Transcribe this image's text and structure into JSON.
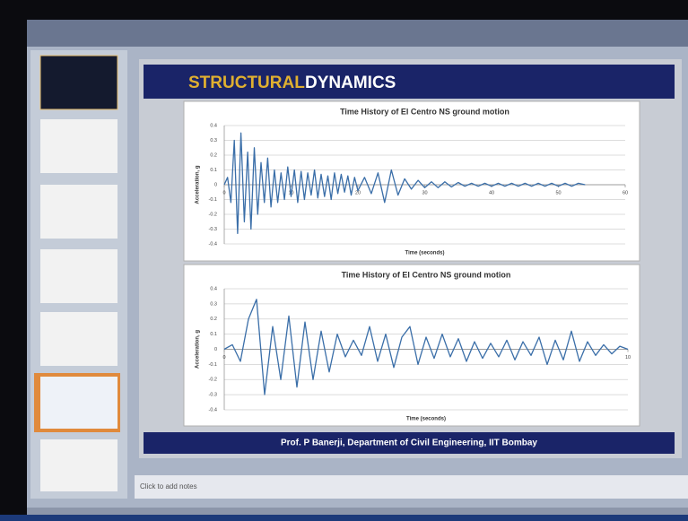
{
  "slide": {
    "title_part1": "STRUCTURAL",
    "title_part2": "DYNAMICS",
    "footer": "Prof. P Banerji, Department of Civil Engineering, IIT Bombay"
  },
  "notes_placeholder": "Click to add notes",
  "chart_data": [
    {
      "type": "line",
      "title": "Time History of El Centro NS ground motion",
      "x_label": "Time (seconds)",
      "y_label": "Acceleration, g",
      "color": "#3a6ea8",
      "grid": true,
      "xlim": [
        0,
        60
      ],
      "ylim": [
        -0.4,
        0.4
      ],
      "xticks": [
        0,
        10,
        20,
        30,
        40,
        50,
        60
      ],
      "yticks": [
        0.4,
        0.3,
        0.2,
        0.1,
        0,
        -0.1,
        -0.2,
        -0.3,
        -0.4
      ],
      "x": [
        0,
        0.5,
        1,
        1.5,
        2,
        2.5,
        3,
        3.5,
        4,
        4.5,
        5,
        5.5,
        6,
        6.5,
        7,
        7.5,
        8,
        8.5,
        9,
        9.5,
        10,
        10.5,
        11,
        11.5,
        12,
        12.5,
        13,
        13.5,
        14,
        14.5,
        15,
        15.5,
        16,
        16.5,
        17,
        17.5,
        18,
        18.5,
        19,
        19.5,
        20,
        21,
        22,
        23,
        24,
        25,
        26,
        27,
        28,
        29,
        30,
        31,
        32,
        33,
        34,
        35,
        36,
        37,
        38,
        39,
        40,
        41,
        42,
        43,
        44,
        45,
        46,
        47,
        48,
        49,
        50,
        51,
        52,
        53,
        54
      ],
      "values": [
        0,
        0.05,
        -0.12,
        0.3,
        -0.33,
        0.35,
        -0.25,
        0.22,
        -0.3,
        0.25,
        -0.2,
        0.15,
        -0.12,
        0.18,
        -0.15,
        0.1,
        -0.12,
        0.08,
        -0.1,
        0.12,
        -0.08,
        0.1,
        -0.12,
        0.09,
        -0.1,
        0.08,
        -0.07,
        0.1,
        -0.09,
        0.07,
        -0.08,
        0.06,
        -0.1,
        0.08,
        -0.06,
        0.07,
        -0.05,
        0.06,
        -0.07,
        0.05,
        -0.04,
        0.05,
        -0.06,
        0.08,
        -0.12,
        0.1,
        -0.07,
        0.04,
        -0.03,
        0.03,
        -0.02,
        0.02,
        -0.02,
        0.02,
        -0.015,
        0.015,
        -0.01,
        0.01,
        -0.01,
        0.01,
        -0.01,
        0.01,
        -0.01,
        0.01,
        -0.01,
        0.01,
        -0.01,
        0.01,
        -0.01,
        0.01,
        -0.01,
        0.01,
        -0.01,
        0.01,
        0
      ]
    },
    {
      "type": "line",
      "title": "Time History of El Centro NS ground motion",
      "x_label": "Time (seconds)",
      "y_label": "Acceleration, g",
      "color": "#3a6ea8",
      "grid": true,
      "xlim": [
        0,
        10
      ],
      "ylim": [
        -0.4,
        0.4
      ],
      "xticks": [
        0,
        10
      ],
      "yticks": [
        0.4,
        0.3,
        0.2,
        0.1,
        0,
        -0.1,
        -0.2,
        -0.3,
        -0.4
      ],
      "x": [
        0,
        0.2,
        0.4,
        0.6,
        0.8,
        1,
        1.2,
        1.4,
        1.6,
        1.8,
        2,
        2.2,
        2.4,
        2.6,
        2.8,
        3,
        3.2,
        3.4,
        3.6,
        3.8,
        4,
        4.2,
        4.4,
        4.6,
        4.8,
        5,
        5.2,
        5.4,
        5.6,
        5.8,
        6,
        6.2,
        6.4,
        6.6,
        6.8,
        7,
        7.2,
        7.4,
        7.6,
        7.8,
        8,
        8.2,
        8.4,
        8.6,
        8.8,
        9,
        9.2,
        9.4,
        9.6,
        9.8,
        10
      ],
      "values": [
        0,
        0.03,
        -0.08,
        0.2,
        0.33,
        -0.3,
        0.15,
        -0.2,
        0.22,
        -0.25,
        0.18,
        -0.2,
        0.12,
        -0.15,
        0.1,
        -0.05,
        0.06,
        -0.04,
        0.15,
        -0.08,
        0.1,
        -0.12,
        0.08,
        0.15,
        -0.1,
        0.08,
        -0.06,
        0.1,
        -0.05,
        0.07,
        -0.08,
        0.05,
        -0.06,
        0.04,
        -0.05,
        0.06,
        -0.07,
        0.05,
        -0.04,
        0.08,
        -0.1,
        0.06,
        -0.07,
        0.12,
        -0.08,
        0.05,
        -0.04,
        0.03,
        -0.03,
        0.02,
        0
      ]
    }
  ]
}
